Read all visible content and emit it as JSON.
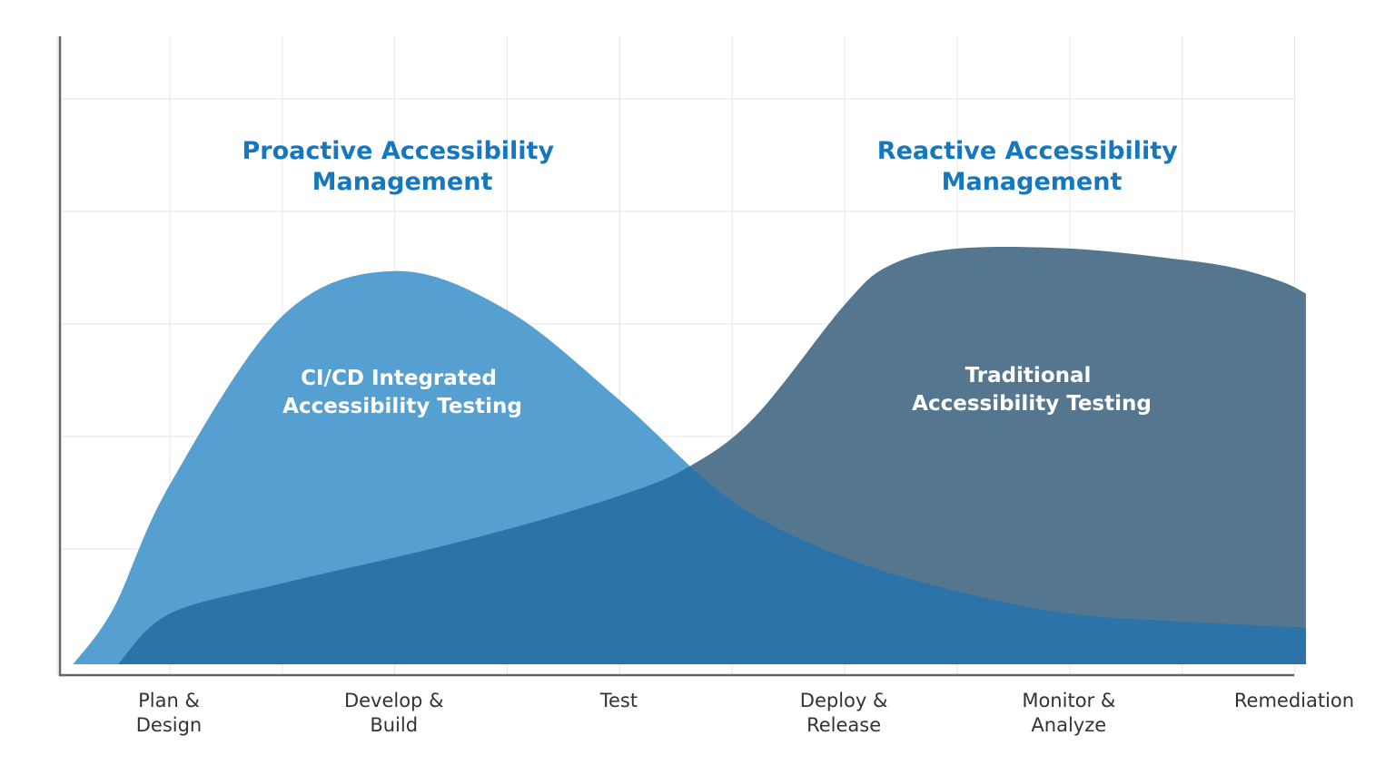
{
  "chart_data": {
    "type": "area",
    "title": "",
    "xlabel": "",
    "ylabel": "",
    "grid": true,
    "categories": [
      [
        "Plan &",
        "Design"
      ],
      [
        "Develop &",
        "Build"
      ],
      [
        "Test"
      ],
      [
        "Deploy &",
        "Release"
      ],
      [
        "Monitor &",
        "Analyze"
      ],
      [
        "Remediation"
      ]
    ],
    "headings": [
      {
        "lines": [
          "Proactive Accessibility",
          "Management"
        ],
        "color": "#1677bd"
      },
      {
        "lines": [
          "Reactive Accessibility",
          "Management"
        ],
        "color": "#1677bd"
      }
    ],
    "series": [
      {
        "name": "CI/CD Integrated Accessibility Testing",
        "label_lines": [
          "CI/CD Integrated",
          "Accessibility Testing"
        ],
        "color": "#559fd1",
        "x": [
          -0.43,
          -0.25,
          0.0,
          0.5,
          1.0,
          1.5,
          2.0,
          2.5,
          3.0,
          3.5,
          4.0,
          4.5,
          5.0,
          5.05
        ],
        "values": [
          0.0,
          0.5,
          1.6,
          3.1,
          3.5,
          3.15,
          2.35,
          1.45,
          0.95,
          0.65,
          0.45,
          0.38,
          0.33,
          0.32
        ]
      },
      {
        "name": "Traditional Accessibility Testing",
        "label_lines": [
          "Traditional",
          "Accessibility Testing"
        ],
        "color": "#54768e",
        "x": [
          -0.23,
          0.0,
          0.5,
          1.0,
          1.5,
          2.0,
          2.3,
          2.6,
          3.0,
          3.2,
          3.5,
          4.0,
          4.5,
          4.75,
          4.95,
          5.05
        ],
        "values": [
          0.0,
          0.45,
          0.72,
          0.95,
          1.2,
          1.5,
          1.75,
          2.2,
          3.2,
          3.55,
          3.7,
          3.7,
          3.6,
          3.52,
          3.4,
          3.3
        ]
      }
    ],
    "overlap_color": "#2c73aa"
  }
}
